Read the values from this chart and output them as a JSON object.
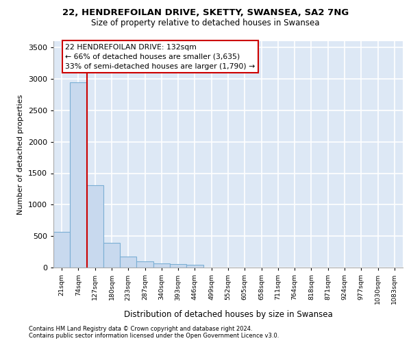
{
  "title_line1": "22, HENDREFOILAN DRIVE, SKETTY, SWANSEA, SA2 7NG",
  "title_line2": "Size of property relative to detached houses in Swansea",
  "xlabel": "Distribution of detached houses by size in Swansea",
  "ylabel": "Number of detached properties",
  "footer_line1": "Contains HM Land Registry data © Crown copyright and database right 2024.",
  "footer_line2": "Contains public sector information licensed under the Open Government Licence v3.0.",
  "annotation_line1": "22 HENDREFOILAN DRIVE: 132sqm",
  "annotation_line2": "← 66% of detached houses are smaller (3,635)",
  "annotation_line3": "33% of semi-detached houses are larger (1,790) →",
  "bar_color": "#c8d9ee",
  "bar_edge_color": "#7bafd4",
  "vline_color": "#cc0000",
  "annotation_box_edge_color": "#cc0000",
  "background_color": "#dde8f5",
  "grid_color": "#ffffff",
  "categories": [
    "21sqm",
    "74sqm",
    "127sqm",
    "180sqm",
    "233sqm",
    "287sqm",
    "340sqm",
    "393sqm",
    "446sqm",
    "499sqm",
    "552sqm",
    "605sqm",
    "658sqm",
    "711sqm",
    "764sqm",
    "818sqm",
    "871sqm",
    "924sqm",
    "977sqm",
    "1030sqm",
    "1083sqm"
  ],
  "values": [
    570,
    2950,
    1310,
    390,
    170,
    100,
    70,
    55,
    45,
    0,
    0,
    0,
    0,
    0,
    0,
    0,
    0,
    0,
    0,
    0,
    0
  ],
  "ylim": [
    0,
    3600
  ],
  "yticks": [
    0,
    500,
    1000,
    1500,
    2000,
    2500,
    3000,
    3500
  ],
  "vline_position": 1.5
}
